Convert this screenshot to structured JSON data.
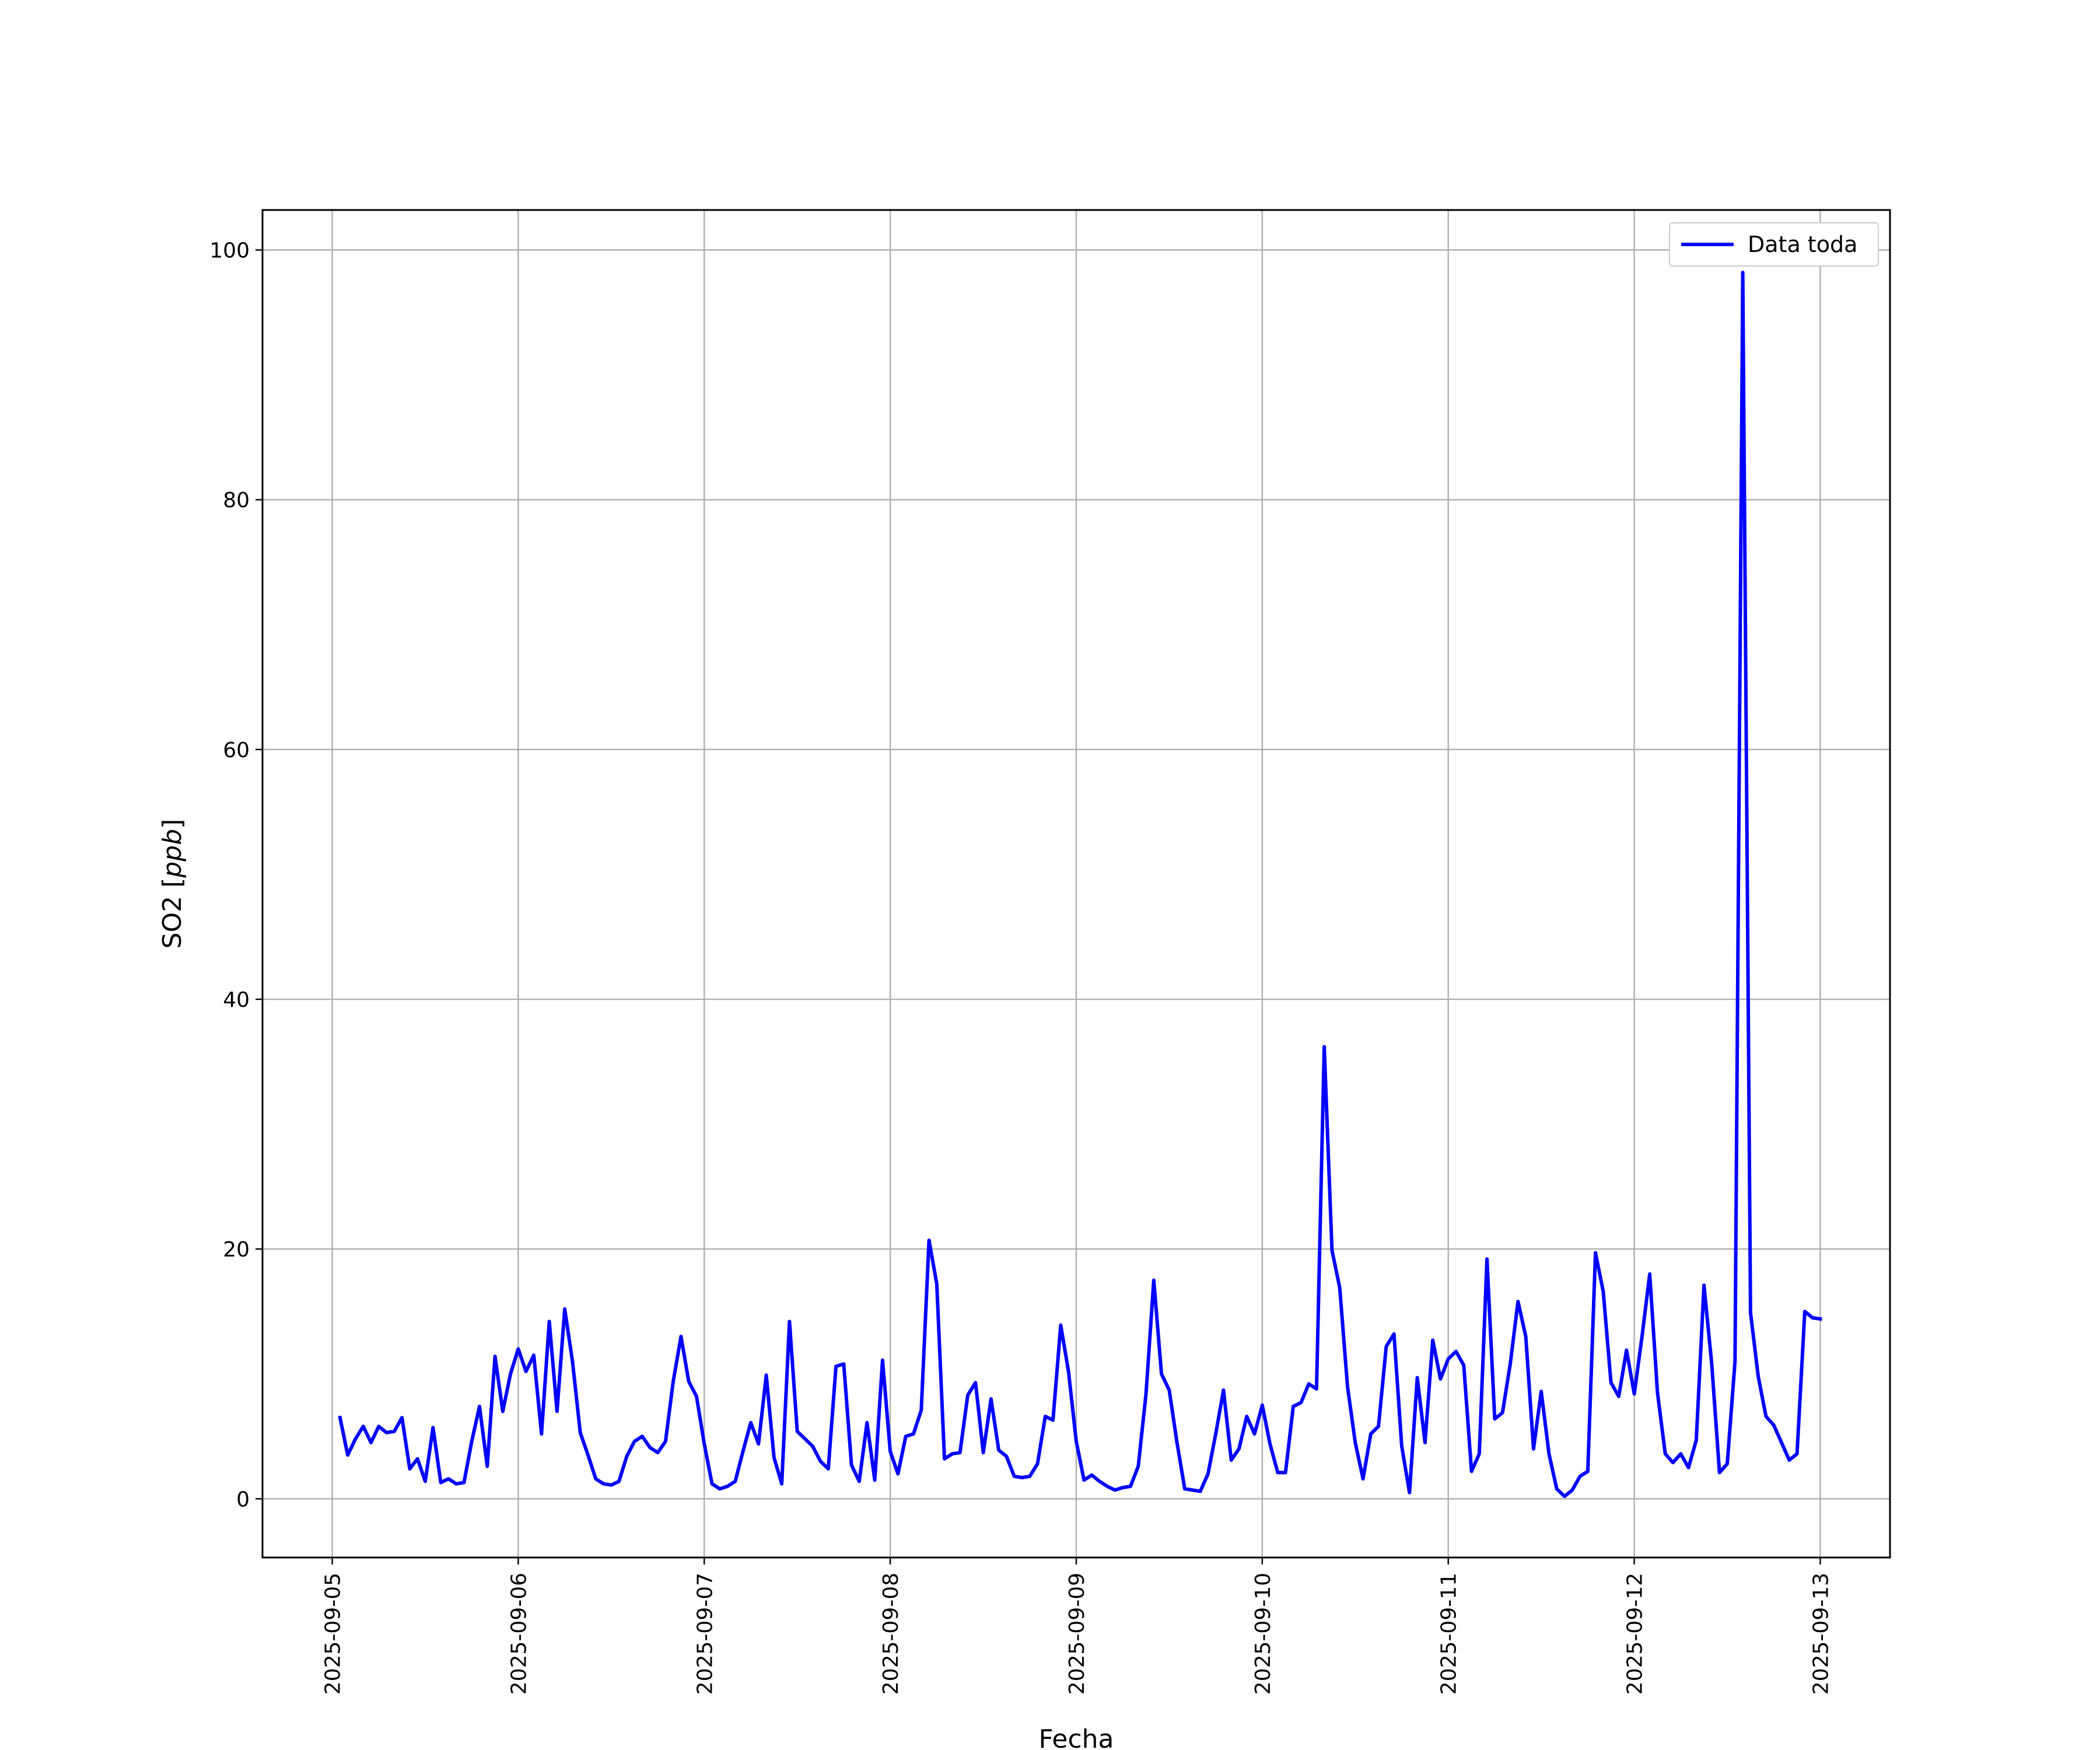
{
  "chart_data": {
    "type": "line",
    "title": "",
    "xlabel": "Fecha",
    "ylabel_main": "SO2 [",
    "ylabel_unit": "ppb",
    "ylabel_close": "]",
    "xlim": [
      "2025-09-04T15:00",
      "2025-09-13T09:00"
    ],
    "ylim": [
      -4.7,
      103.2
    ],
    "x_tick_labels": [
      "2025-09-05",
      "2025-09-06",
      "2025-09-07",
      "2025-09-08",
      "2025-09-09",
      "2025-09-10",
      "2025-09-11",
      "2025-09-12",
      "2025-09-13"
    ],
    "y_tick_labels": [
      "0",
      "20",
      "40",
      "60",
      "80",
      "100"
    ],
    "y_tick_values": [
      0,
      20,
      40,
      60,
      80,
      100
    ],
    "grid": true,
    "legend": {
      "position": "upper right",
      "entries": [
        "Data toda"
      ]
    },
    "series": [
      {
        "name": "Data toda",
        "color": "#0000ff",
        "x": [
          "2025-09-05T01:00",
          "2025-09-05T02:00",
          "2025-09-05T03:00",
          "2025-09-05T04:00",
          "2025-09-05T05:00",
          "2025-09-05T06:00",
          "2025-09-05T07:00",
          "2025-09-05T08:00",
          "2025-09-05T09:00",
          "2025-09-05T10:00",
          "2025-09-05T11:00",
          "2025-09-05T12:00",
          "2025-09-05T13:00",
          "2025-09-05T14:00",
          "2025-09-05T15:00",
          "2025-09-05T16:00",
          "2025-09-05T17:00",
          "2025-09-05T18:00",
          "2025-09-05T19:00",
          "2025-09-05T20:00",
          "2025-09-05T21:00",
          "2025-09-05T22:00",
          "2025-09-05T23:00",
          "2025-09-06T00:00",
          "2025-09-06T01:00",
          "2025-09-06T02:00",
          "2025-09-06T03:00",
          "2025-09-06T04:00",
          "2025-09-06T05:00",
          "2025-09-06T06:00",
          "2025-09-06T07:00",
          "2025-09-06T08:00",
          "2025-09-06T09:00",
          "2025-09-06T10:00",
          "2025-09-06T11:00",
          "2025-09-06T12:00",
          "2025-09-06T13:00",
          "2025-09-06T14:00",
          "2025-09-06T15:00",
          "2025-09-06T16:00",
          "2025-09-06T17:00",
          "2025-09-06T18:00",
          "2025-09-06T19:00",
          "2025-09-06T20:00",
          "2025-09-06T21:00",
          "2025-09-06T22:00",
          "2025-09-06T23:00",
          "2025-09-07T00:00",
          "2025-09-07T01:00",
          "2025-09-07T02:00",
          "2025-09-07T03:00",
          "2025-09-07T04:00",
          "2025-09-07T05:00",
          "2025-09-07T06:00",
          "2025-09-07T07:00",
          "2025-09-07T08:00",
          "2025-09-07T09:00",
          "2025-09-07T10:00",
          "2025-09-07T11:00",
          "2025-09-07T12:00",
          "2025-09-07T13:00",
          "2025-09-07T14:00",
          "2025-09-07T15:00",
          "2025-09-07T16:00",
          "2025-09-07T17:00",
          "2025-09-07T18:00",
          "2025-09-07T19:00",
          "2025-09-07T20:00",
          "2025-09-07T21:00",
          "2025-09-07T22:00",
          "2025-09-07T23:00",
          "2025-09-08T00:00",
          "2025-09-08T01:00",
          "2025-09-08T02:00",
          "2025-09-08T03:00",
          "2025-09-08T04:00",
          "2025-09-08T05:00",
          "2025-09-08T06:00",
          "2025-09-08T07:00",
          "2025-09-08T08:00",
          "2025-09-08T09:00",
          "2025-09-08T10:00",
          "2025-09-08T11:00",
          "2025-09-08T12:00",
          "2025-09-08T13:00",
          "2025-09-08T14:00",
          "2025-09-08T15:00",
          "2025-09-08T16:00",
          "2025-09-08T17:00",
          "2025-09-08T18:00",
          "2025-09-08T19:00",
          "2025-09-08T20:00",
          "2025-09-08T21:00",
          "2025-09-08T22:00",
          "2025-09-08T23:00",
          "2025-09-09T00:00",
          "2025-09-09T01:00",
          "2025-09-09T02:00",
          "2025-09-09T03:00",
          "2025-09-09T04:00",
          "2025-09-09T05:00",
          "2025-09-09T06:00",
          "2025-09-09T07:00",
          "2025-09-09T08:00",
          "2025-09-09T09:00",
          "2025-09-09T10:00",
          "2025-09-09T11:00",
          "2025-09-09T12:00",
          "2025-09-09T13:00",
          "2025-09-09T14:00",
          "2025-09-09T15:00",
          "2025-09-09T16:00",
          "2025-09-09T17:00",
          "2025-09-09T18:00",
          "2025-09-09T19:00",
          "2025-09-09T20:00",
          "2025-09-09T21:00",
          "2025-09-09T22:00",
          "2025-09-09T23:00",
          "2025-09-10T00:00",
          "2025-09-10T01:00",
          "2025-09-10T02:00",
          "2025-09-10T03:00",
          "2025-09-10T04:00",
          "2025-09-10T05:00",
          "2025-09-10T06:00",
          "2025-09-10T07:00",
          "2025-09-10T08:00",
          "2025-09-10T09:00",
          "2025-09-10T10:00",
          "2025-09-10T11:00",
          "2025-09-10T12:00",
          "2025-09-10T13:00",
          "2025-09-10T14:00",
          "2025-09-10T15:00",
          "2025-09-10T16:00",
          "2025-09-10T17:00",
          "2025-09-10T18:00",
          "2025-09-10T19:00",
          "2025-09-10T20:00",
          "2025-09-10T21:00",
          "2025-09-10T22:00",
          "2025-09-10T23:00",
          "2025-09-11T00:00",
          "2025-09-11T01:00",
          "2025-09-11T02:00",
          "2025-09-11T03:00",
          "2025-09-11T04:00",
          "2025-09-11T05:00",
          "2025-09-11T06:00",
          "2025-09-11T07:00",
          "2025-09-11T08:00",
          "2025-09-11T09:00",
          "2025-09-11T10:00",
          "2025-09-11T11:00",
          "2025-09-11T12:00",
          "2025-09-11T13:00",
          "2025-09-11T14:00",
          "2025-09-11T15:00",
          "2025-09-11T16:00",
          "2025-09-11T17:00",
          "2025-09-11T18:00",
          "2025-09-11T19:00",
          "2025-09-11T20:00",
          "2025-09-11T21:00",
          "2025-09-11T22:00",
          "2025-09-11T23:00",
          "2025-09-12T00:00",
          "2025-09-12T01:00",
          "2025-09-12T02:00",
          "2025-09-12T03:00",
          "2025-09-12T04:00",
          "2025-09-12T05:00",
          "2025-09-12T06:00",
          "2025-09-12T07:00",
          "2025-09-12T08:00",
          "2025-09-12T09:00",
          "2025-09-12T10:00",
          "2025-09-12T11:00",
          "2025-09-12T12:00",
          "2025-09-12T13:00",
          "2025-09-12T14:00",
          "2025-09-12T15:00",
          "2025-09-12T16:00",
          "2025-09-12T17:00",
          "2025-09-12T18:00",
          "2025-09-12T19:00",
          "2025-09-12T20:00",
          "2025-09-12T21:00",
          "2025-09-12T22:00",
          "2025-09-12T23:00",
          "2025-09-13T00:00"
        ],
        "y": [
          6.5,
          3.5,
          4.8,
          5.8,
          4.5,
          5.8,
          5.3,
          5.4,
          6.5,
          2.4,
          3.2,
          1.4,
          5.7,
          1.3,
          1.6,
          1.2,
          1.3,
          4.6,
          7.4,
          2.6,
          11.4,
          7.0,
          10.0,
          12.0,
          10.2,
          11.5,
          5.2,
          14.2,
          7.0,
          15.2,
          11.0,
          5.3,
          3.5,
          1.6,
          1.2,
          1.1,
          1.4,
          3.4,
          4.6,
          5.0,
          4.1,
          3.7,
          4.6,
          9.4,
          13.0,
          9.4,
          8.2,
          4.4,
          1.2,
          0.8,
          1.0,
          1.4,
          3.8,
          6.1,
          4.4,
          9.9,
          3.3,
          1.2,
          14.2,
          5.4,
          4.8,
          4.2,
          3.0,
          2.4,
          10.6,
          10.8,
          2.7,
          1.4,
          6.1,
          1.5,
          11.1,
          3.8,
          2.0,
          5.0,
          5.2,
          7.1,
          20.7,
          17.2,
          3.2,
          3.6,
          3.7,
          8.3,
          9.3,
          3.7,
          8.0,
          3.9,
          3.4,
          1.8,
          1.7,
          1.8,
          2.8,
          6.6,
          6.3,
          13.9,
          10.2,
          4.6,
          1.5,
          1.9,
          1.4,
          1.0,
          0.7,
          0.9,
          1.0,
          2.6,
          8.4,
          17.5,
          10.0,
          8.7,
          4.5,
          0.8,
          0.7,
          0.6,
          2.0,
          5.2,
          8.7,
          3.1,
          4.0,
          6.6,
          5.2,
          7.5,
          4.4,
          2.1,
          2.1,
          7.4,
          7.7,
          9.2,
          8.8,
          36.2,
          19.9,
          16.9,
          9.0,
          4.5,
          1.6,
          5.2,
          5.8,
          12.2,
          13.2,
          4.2,
          0.5,
          9.7,
          4.5,
          12.7,
          9.6,
          11.2,
          11.8,
          10.7,
          2.2,
          3.6,
          19.2,
          6.4,
          6.9,
          10.8,
          15.8,
          13.0,
          4.0,
          8.6,
          3.6,
          0.8,
          0.2,
          0.7,
          1.8,
          2.2,
          19.7,
          16.6,
          9.3,
          8.2,
          11.9,
          8.4,
          13.0,
          18.0,
          8.5,
          3.6,
          2.9,
          3.6,
          2.5,
          4.7,
          17.1,
          10.8,
          2.1,
          2.8,
          11.0,
          98.2,
          14.9,
          9.8,
          6.6,
          5.9,
          4.5,
          3.1,
          3.6,
          15.0,
          14.5,
          14.4
        ]
      }
    ]
  }
}
